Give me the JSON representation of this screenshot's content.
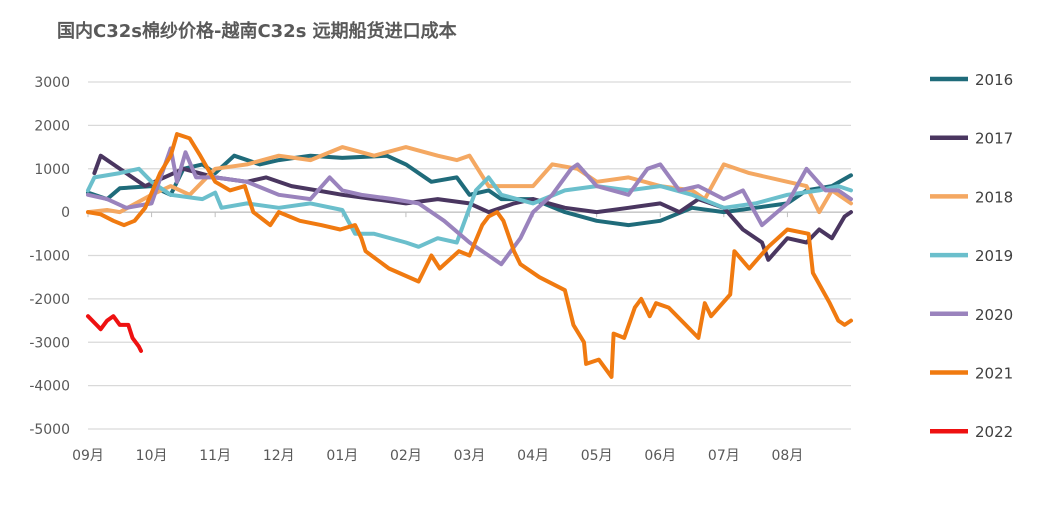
{
  "chart_data": {
    "type": "line",
    "title": "国内C32s棉纱价格-越南C32s 远期船货进口成本",
    "xlabel": "",
    "ylabel": "",
    "ylim": [
      -5000,
      3000
    ],
    "yticks": [
      3000,
      2000,
      1000,
      0,
      -1000,
      -2000,
      -3000,
      -4000,
      -5000
    ],
    "xticks": [
      {
        "label": "09月",
        "date": "09-01"
      },
      {
        "label": "10月",
        "date": "10-01"
      },
      {
        "label": "11月",
        "date": "11-01"
      },
      {
        "label": "12月",
        "date": "12-01"
      },
      {
        "label": "01月",
        "date": "01-01"
      },
      {
        "label": "02月",
        "date": "02-01"
      },
      {
        "label": "03月",
        "date": "03-01"
      },
      {
        "label": "04月",
        "date": "04-01"
      },
      {
        "label": "05月",
        "date": "05-01"
      },
      {
        "label": "06月",
        "date": "06-01"
      },
      {
        "label": "07月",
        "date": "07-01"
      },
      {
        "label": "08月",
        "date": "08-01"
      }
    ],
    "grid": true,
    "legend_position": "right",
    "series": [
      {
        "name": "2016",
        "color": "#1f6b7a",
        "points": [
          [
            "09-01",
            450
          ],
          [
            "09-10",
            300
          ],
          [
            "09-16",
            550
          ],
          [
            "10-01",
            600
          ],
          [
            "10-10",
            400
          ],
          [
            "10-16",
            1000
          ],
          [
            "10-25",
            1100
          ],
          [
            "11-01",
            900
          ],
          [
            "11-10",
            1300
          ],
          [
            "11-22",
            1100
          ],
          [
            "12-01",
            1200
          ],
          [
            "12-16",
            1300
          ],
          [
            "01-01",
            1250
          ],
          [
            "01-22",
            1300
          ],
          [
            "02-01",
            1100
          ],
          [
            "02-13",
            700
          ],
          [
            "02-25",
            800
          ],
          [
            "03-01",
            400
          ],
          [
            "03-10",
            500
          ],
          [
            "03-16",
            300
          ],
          [
            "04-01",
            300
          ],
          [
            "04-16",
            0
          ],
          [
            "05-01",
            -200
          ],
          [
            "05-16",
            -300
          ],
          [
            "06-01",
            -200
          ],
          [
            "06-16",
            100
          ],
          [
            "07-01",
            0
          ],
          [
            "07-16",
            100
          ],
          [
            "08-01",
            200
          ],
          [
            "08-10",
            500
          ],
          [
            "08-22",
            600
          ],
          [
            "08-31",
            850
          ]
        ]
      },
      {
        "name": "2017",
        "color": "#4a3660",
        "points": [
          [
            "09-04",
            900
          ],
          [
            "09-07",
            1300
          ],
          [
            "09-13",
            1100
          ],
          [
            "09-19",
            900
          ],
          [
            "09-28",
            600
          ],
          [
            "10-07",
            800
          ],
          [
            "10-16",
            1000
          ],
          [
            "11-01",
            800
          ],
          [
            "11-16",
            700
          ],
          [
            "11-25",
            800
          ],
          [
            "12-07",
            600
          ],
          [
            "12-19",
            500
          ],
          [
            "01-01",
            400
          ],
          [
            "01-16",
            300
          ],
          [
            "02-01",
            200
          ],
          [
            "02-16",
            300
          ],
          [
            "03-01",
            200
          ],
          [
            "03-10",
            0
          ],
          [
            "03-22",
            200
          ],
          [
            "04-01",
            300
          ],
          [
            "04-16",
            100
          ],
          [
            "05-01",
            0
          ],
          [
            "05-16",
            100
          ],
          [
            "06-01",
            200
          ],
          [
            "06-10",
            0
          ],
          [
            "06-19",
            300
          ],
          [
            "07-01",
            100
          ],
          [
            "07-10",
            -400
          ],
          [
            "07-19",
            -700
          ],
          [
            "07-22",
            -1100
          ],
          [
            "08-01",
            -600
          ],
          [
            "08-10",
            -700
          ],
          [
            "08-16",
            -400
          ],
          [
            "08-22",
            -600
          ],
          [
            "08-28",
            -100
          ],
          [
            "08-31",
            0
          ]
        ]
      },
      {
        "name": "2018",
        "color": "#f4a862",
        "points": [
          [
            "09-01",
            0
          ],
          [
            "09-10",
            50
          ],
          [
            "09-16",
            0
          ],
          [
            "10-01",
            400
          ],
          [
            "10-10",
            600
          ],
          [
            "10-19",
            400
          ],
          [
            "11-01",
            1000
          ],
          [
            "11-16",
            1100
          ],
          [
            "12-01",
            1300
          ],
          [
            "12-16",
            1200
          ],
          [
            "01-01",
            1500
          ],
          [
            "01-16",
            1300
          ],
          [
            "02-01",
            1500
          ],
          [
            "02-16",
            1300
          ],
          [
            "02-25",
            1200
          ],
          [
            "03-01",
            1300
          ],
          [
            "03-10",
            600
          ],
          [
            "04-01",
            600
          ],
          [
            "04-10",
            1100
          ],
          [
            "04-22",
            1000
          ],
          [
            "05-01",
            700
          ],
          [
            "05-16",
            800
          ],
          [
            "06-01",
            600
          ],
          [
            "06-16",
            500
          ],
          [
            "06-22",
            300
          ],
          [
            "07-01",
            1100
          ],
          [
            "07-13",
            900
          ],
          [
            "08-01",
            700
          ],
          [
            "08-10",
            600
          ],
          [
            "08-16",
            0
          ],
          [
            "08-22",
            500
          ],
          [
            "08-31",
            200
          ]
        ]
      },
      {
        "name": "2019",
        "color": "#6bbfcc",
        "points": [
          [
            "09-01",
            500
          ],
          [
            "09-04",
            800
          ],
          [
            "09-16",
            900
          ],
          [
            "09-25",
            1000
          ],
          [
            "10-01",
            700
          ],
          [
            "10-10",
            400
          ],
          [
            "10-25",
            300
          ],
          [
            "11-01",
            450
          ],
          [
            "11-04",
            100
          ],
          [
            "11-16",
            200
          ],
          [
            "12-01",
            100
          ],
          [
            "12-16",
            200
          ],
          [
            "01-01",
            50
          ],
          [
            "01-07",
            -500
          ],
          [
            "01-16",
            -500
          ],
          [
            "02-01",
            -700
          ],
          [
            "02-07",
            -800
          ],
          [
            "02-16",
            -600
          ],
          [
            "02-25",
            -700
          ],
          [
            "03-04",
            500
          ],
          [
            "03-10",
            800
          ],
          [
            "03-16",
            400
          ],
          [
            "04-01",
            200
          ],
          [
            "04-16",
            500
          ],
          [
            "05-01",
            600
          ],
          [
            "05-16",
            500
          ],
          [
            "06-01",
            600
          ],
          [
            "06-16",
            400
          ],
          [
            "07-01",
            100
          ],
          [
            "07-16",
            200
          ],
          [
            "08-01",
            400
          ],
          [
            "08-16",
            500
          ],
          [
            "08-25",
            600
          ],
          [
            "08-31",
            500
          ]
        ]
      },
      {
        "name": "2020",
        "color": "#9a83bd",
        "points": [
          [
            "09-01",
            400
          ],
          [
            "09-10",
            300
          ],
          [
            "09-19",
            100
          ],
          [
            "10-01",
            200
          ],
          [
            "10-10",
            1470
          ],
          [
            "10-13",
            700
          ],
          [
            "10-17",
            1380
          ],
          [
            "10-22",
            800
          ],
          [
            "11-01",
            800
          ],
          [
            "11-16",
            700
          ],
          [
            "12-01",
            400
          ],
          [
            "12-16",
            300
          ],
          [
            "12-25",
            800
          ],
          [
            "01-01",
            500
          ],
          [
            "01-10",
            400
          ],
          [
            "01-25",
            300
          ],
          [
            "02-07",
            200
          ],
          [
            "02-19",
            -200
          ],
          [
            "03-01",
            -700
          ],
          [
            "03-10",
            -1000
          ],
          [
            "03-16",
            -1200
          ],
          [
            "03-25",
            -600
          ],
          [
            "04-01",
            0
          ],
          [
            "04-10",
            400
          ],
          [
            "04-19",
            1000
          ],
          [
            "04-22",
            1100
          ],
          [
            "05-01",
            600
          ],
          [
            "05-16",
            400
          ],
          [
            "05-25",
            1000
          ],
          [
            "06-01",
            1100
          ],
          [
            "06-10",
            500
          ],
          [
            "06-19",
            600
          ],
          [
            "07-01",
            300
          ],
          [
            "07-10",
            500
          ],
          [
            "07-19",
            -300
          ],
          [
            "08-01",
            200
          ],
          [
            "08-10",
            1000
          ],
          [
            "08-19",
            500
          ],
          [
            "08-25",
            500
          ],
          [
            "08-31",
            300
          ]
        ]
      },
      {
        "name": "2021",
        "color": "#f07a10",
        "points": [
          [
            "09-01",
            0
          ],
          [
            "09-07",
            -50
          ],
          [
            "09-13",
            -200
          ],
          [
            "09-18",
            -300
          ],
          [
            "09-23",
            -200
          ],
          [
            "09-28",
            100
          ],
          [
            "10-05",
            900
          ],
          [
            "10-10",
            1300
          ],
          [
            "10-13",
            1800
          ],
          [
            "10-19",
            1700
          ],
          [
            "10-24",
            1300
          ],
          [
            "11-01",
            700
          ],
          [
            "11-08",
            500
          ],
          [
            "11-15",
            600
          ],
          [
            "11-19",
            0
          ],
          [
            "11-27",
            -300
          ],
          [
            "12-01",
            0
          ],
          [
            "12-11",
            -200
          ],
          [
            "12-21",
            -300
          ],
          [
            "12-30",
            -400
          ],
          [
            "01-07",
            -300
          ],
          [
            "01-10",
            -600
          ],
          [
            "01-12",
            -900
          ],
          [
            "01-23",
            -1300
          ],
          [
            "02-07",
            -1600
          ],
          [
            "02-13",
            -1000
          ],
          [
            "02-17",
            -1300
          ],
          [
            "02-26",
            -900
          ],
          [
            "03-01",
            -1000
          ],
          [
            "03-07",
            -300
          ],
          [
            "03-10",
            -100
          ],
          [
            "03-14",
            0
          ],
          [
            "03-17",
            -200
          ],
          [
            "03-22",
            -900
          ],
          [
            "03-25",
            -1200
          ],
          [
            "04-04",
            -1500
          ],
          [
            "04-16",
            -1800
          ],
          [
            "04-20",
            -2600
          ],
          [
            "04-25",
            -3000
          ],
          [
            "04-26",
            -3500
          ],
          [
            "05-02",
            -3400
          ],
          [
            "05-08",
            -3800
          ],
          [
            "05-09",
            -2800
          ],
          [
            "05-14",
            -2900
          ],
          [
            "05-19",
            -2200
          ],
          [
            "05-22",
            -2000
          ],
          [
            "05-26",
            -2400
          ],
          [
            "05-29",
            -2100
          ],
          [
            "06-05",
            -2200
          ],
          [
            "06-13",
            -2600
          ],
          [
            "06-19",
            -2900
          ],
          [
            "06-22",
            -2100
          ],
          [
            "06-25",
            -2400
          ],
          [
            "07-04",
            -1900
          ],
          [
            "07-06",
            -900
          ],
          [
            "07-13",
            -1300
          ],
          [
            "07-22",
            -800
          ],
          [
            "08-01",
            -400
          ],
          [
            "08-11",
            -500
          ],
          [
            "08-13",
            -1400
          ],
          [
            "08-21",
            -2100
          ],
          [
            "08-25",
            -2500
          ],
          [
            "08-28",
            -2600
          ],
          [
            "08-31",
            -2500
          ]
        ]
      },
      {
        "name": "2022",
        "color": "#ee1111",
        "points": [
          [
            "09-01",
            -2400
          ],
          [
            "09-05",
            -2600
          ],
          [
            "09-07",
            -2700
          ],
          [
            "09-10",
            -2500
          ],
          [
            "09-13",
            -2400
          ],
          [
            "09-16",
            -2600
          ],
          [
            "09-20",
            -2600
          ],
          [
            "09-22",
            -2900
          ],
          [
            "09-25",
            -3100
          ],
          [
            "09-26",
            -3200
          ]
        ]
      }
    ]
  }
}
